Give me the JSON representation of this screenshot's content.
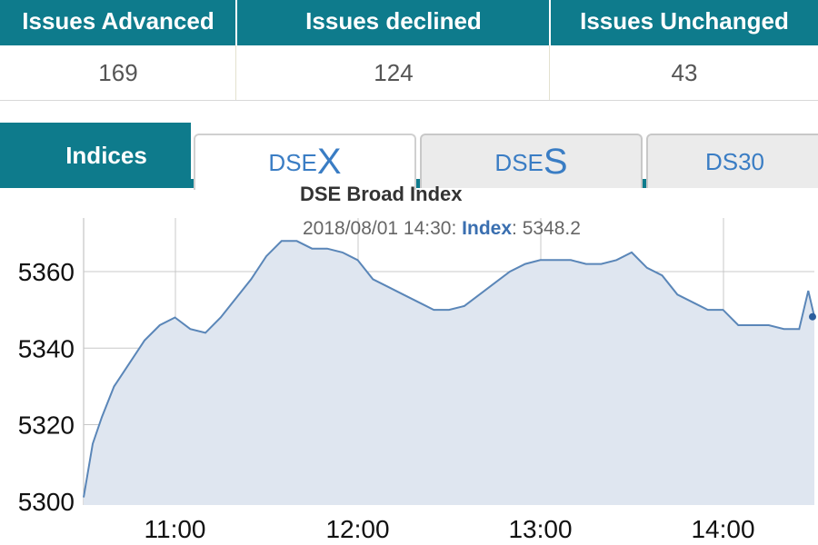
{
  "summary": {
    "headers": [
      "Issues Advanced",
      "Issues declined",
      "Issues Unchanged"
    ],
    "values": [
      "169",
      "124",
      "43"
    ]
  },
  "tabs": {
    "indices_label": "Indices",
    "dsex": {
      "prefix": "DSE",
      "suffix": "X"
    },
    "dses": {
      "prefix": "DSE",
      "suffix": "S"
    },
    "ds30": {
      "label": "DS30"
    },
    "active": "DSEX"
  },
  "tooltip": {
    "title": "DSE Broad Index",
    "timestamp": "2018/08/01 14:30:",
    "key": "Index",
    "value": ": 5348.2"
  },
  "colors": {
    "header_bg": "#0e7b8c",
    "line": "#5a86b8",
    "fill": "#dfe6f0",
    "tab_text": "#3a7dc4"
  },
  "chart_data": {
    "type": "area",
    "title": "DSE Broad Index",
    "x_ticks": [
      "11:00",
      "12:00",
      "13:00",
      "14:00"
    ],
    "y_ticks": [
      5300,
      5320,
      5340,
      5360
    ],
    "xlim": [
      "10:30",
      "14:30"
    ],
    "ylim": [
      5299,
      5374
    ],
    "grid": true,
    "x": [
      "10:30",
      "10:33",
      "10:36",
      "10:40",
      "10:45",
      "10:50",
      "10:55",
      "11:00",
      "11:05",
      "11:10",
      "11:15",
      "11:20",
      "11:25",
      "11:30",
      "11:35",
      "11:40",
      "11:45",
      "11:50",
      "11:55",
      "12:00",
      "12:05",
      "12:10",
      "12:15",
      "12:20",
      "12:25",
      "12:30",
      "12:35",
      "12:40",
      "12:45",
      "12:50",
      "12:55",
      "13:00",
      "13:05",
      "13:10",
      "13:15",
      "13:20",
      "13:25",
      "13:30",
      "13:35",
      "13:40",
      "13:45",
      "13:50",
      "13:55",
      "14:00",
      "14:05",
      "14:10",
      "14:15",
      "14:20",
      "14:25",
      "14:28",
      "14:30"
    ],
    "series": [
      {
        "values": [
          5301,
          5315,
          5322,
          5330,
          5336,
          5342,
          5346,
          5348,
          5345,
          5344,
          5348,
          5353,
          5358,
          5364,
          5368,
          5368,
          5366,
          5366,
          5365,
          5363,
          5358,
          5356,
          5354,
          5352,
          5350,
          5350,
          5351,
          5354,
          5357,
          5360,
          5362,
          5363,
          5363,
          5363,
          5362,
          5362,
          5363,
          5365,
          5361,
          5359,
          5354,
          5352,
          5350,
          5350,
          5346,
          5346,
          5346,
          5345,
          5345,
          5355,
          5348.2
        ]
      }
    ]
  }
}
